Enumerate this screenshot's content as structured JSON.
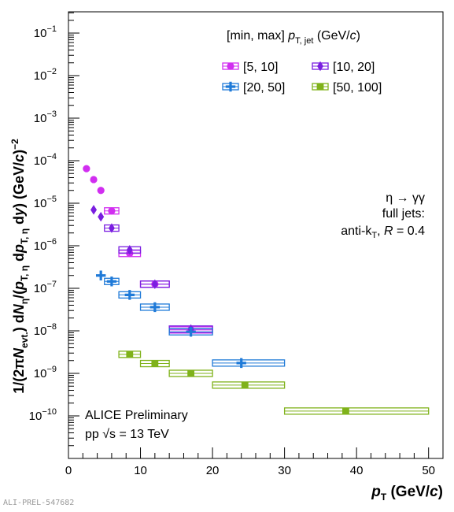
{
  "chart_data": {
    "type": "scatter",
    "xlim": [
      0,
      52
    ],
    "ylim_exp": [
      -11,
      -0.5
    ],
    "x_ticks": [
      "0",
      "10",
      "20",
      "30",
      "40",
      "50"
    ],
    "x_tick_values": [
      0,
      10,
      20,
      30,
      40,
      50
    ],
    "y_tick_exponents": [
      -10,
      -9,
      -8,
      -7,
      -6,
      -5,
      -4,
      -3,
      -2,
      -1
    ],
    "y_tick_labels": [
      "10",
      "10",
      "10",
      "10",
      "10",
      "10",
      "10",
      "10",
      "10",
      "10"
    ],
    "y_tick_sup": [
      "−10",
      "−9",
      "−8",
      "−7",
      "−6",
      "−5",
      "−4",
      "−3",
      "−2",
      "−1"
    ],
    "y_scale": "log",
    "xlabel": {
      "main": "p",
      "sub": "T",
      "unit": " (GeV/c)"
    },
    "ylabel": "1/(2πN evt.) dN η /(p T, η dp T, η dy) (GeV/c) −2",
    "legend": {
      "title_prefix": "[min, max] ",
      "title_p": "p",
      "title_sub": "T, jet",
      "title_suffix": " (GeV/",
      "title_c": "c",
      "title_close": ")",
      "placement": "top-right"
    },
    "annotation": {
      "line1": "η → γγ",
      "line2": "full jets:",
      "line3_prefix": "anti-k",
      "line3_sub": "T",
      "line3_mid": ", ",
      "line3_R": "R",
      "line3_suffix": " = 0.4"
    },
    "caption": {
      "line1": "ALICE Preliminary",
      "line2_prefix": "pp ",
      "line2_sqrt": "√s",
      "line2_suffix": " = 13 TeV"
    },
    "series": [
      {
        "name": "[5, 10]",
        "color": "#d12ef0",
        "marker": "circle",
        "points": [
          {
            "x": 2.5,
            "y": 6.5e-05,
            "xlo": 2.5,
            "xhi": 2.5,
            "sys": false
          },
          {
            "x": 3.5,
            "y": 3.6e-05,
            "xlo": 3.5,
            "xhi": 3.5,
            "sys": false
          },
          {
            "x": 4.5,
            "y": 2e-05,
            "xlo": 4.5,
            "xhi": 4.5,
            "sys": false
          },
          {
            "x": 6.0,
            "y": 6.6e-06,
            "xlo": 5.0,
            "xhi": 7.0,
            "sys": true
          },
          {
            "x": 8.5,
            "y": 6.6e-07,
            "xlo": 7.0,
            "xhi": 10.0,
            "sys": true
          },
          {
            "x": 12.0,
            "y": 1.25e-07,
            "xlo": 10.0,
            "xhi": 14.0,
            "sys": true
          },
          {
            "x": 17.0,
            "y": 1.05e-08,
            "xlo": 14.0,
            "xhi": 20.0,
            "sys": true
          }
        ]
      },
      {
        "name": "[10, 20]",
        "color": "#7a1ee0",
        "marker": "diamond",
        "points": [
          {
            "x": 3.5,
            "y": 7e-06,
            "xlo": 3.5,
            "xhi": 3.5,
            "sys": false
          },
          {
            "x": 4.5,
            "y": 4.8e-06,
            "xlo": 4.5,
            "xhi": 4.5,
            "sys": false
          },
          {
            "x": 6.0,
            "y": 2.6e-06,
            "xlo": 5.0,
            "xhi": 7.0,
            "sys": true
          },
          {
            "x": 8.5,
            "y": 8e-07,
            "xlo": 7.0,
            "xhi": 10.0,
            "sys": true
          },
          {
            "x": 12.0,
            "y": 1.25e-07,
            "xlo": 10.0,
            "xhi": 14.0,
            "sys": true
          },
          {
            "x": 17.0,
            "y": 1.1e-08,
            "xlo": 14.0,
            "xhi": 20.0,
            "sys": true
          }
        ]
      },
      {
        "name": "[20, 50]",
        "color": "#1f7ad8",
        "marker": "cross",
        "points": [
          {
            "x": 4.5,
            "y": 2e-07,
            "xlo": 4.5,
            "xhi": 4.5,
            "sys": false
          },
          {
            "x": 6.0,
            "y": 1.45e-07,
            "xlo": 5.0,
            "xhi": 7.0,
            "sys": true
          },
          {
            "x": 8.5,
            "y": 7e-08,
            "xlo": 7.0,
            "xhi": 10.0,
            "sys": true
          },
          {
            "x": 12.0,
            "y": 3.6e-08,
            "xlo": 10.0,
            "xhi": 14.0,
            "sys": true
          },
          {
            "x": 17.0,
            "y": 9.5e-09,
            "xlo": 14.0,
            "xhi": 20.0,
            "sys": true
          },
          {
            "x": 24.0,
            "y": 1.75e-09,
            "xlo": 20.0,
            "xhi": 30.0,
            "sys": true
          }
        ]
      },
      {
        "name": "[50, 100]",
        "color": "#7fb21a",
        "marker": "square",
        "points": [
          {
            "x": 8.5,
            "y": 2.8e-09,
            "xlo": 7.0,
            "xhi": 10.0,
            "sys": true
          },
          {
            "x": 12.0,
            "y": 1.7e-09,
            "xlo": 10.0,
            "xhi": 14.0,
            "sys": true
          },
          {
            "x": 17.0,
            "y": 1e-09,
            "xlo": 14.0,
            "xhi": 20.0,
            "sys": true
          },
          {
            "x": 24.5,
            "y": 5.3e-10,
            "xlo": 20.0,
            "xhi": 30.0,
            "sys": true
          },
          {
            "x": 38.5,
            "y": 1.3e-10,
            "xlo": 30.0,
            "xhi": 50.0,
            "sys": true
          }
        ]
      }
    ]
  },
  "footer": "ALI-PREL-547682"
}
